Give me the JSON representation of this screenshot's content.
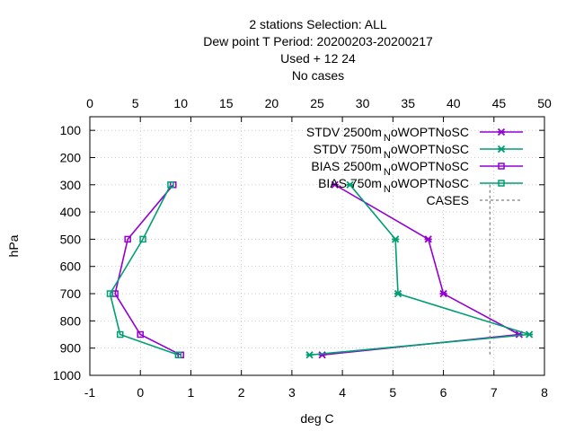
{
  "chart_data": {
    "type": "line",
    "title_lines": [
      "2 stations Selection: ALL",
      "Dew point T  Period: 20200203-20200217",
      "Used   + 12 24",
      "No cases"
    ],
    "xlabel": "deg C",
    "ylabel": "hPa",
    "xlim": [
      -1,
      8
    ],
    "ylim": [
      1000,
      50
    ],
    "x2lim": [
      0,
      50
    ],
    "x_ticks": [
      "-1",
      "0",
      "1",
      "2",
      "3",
      "4",
      "5",
      "6",
      "7",
      "8"
    ],
    "x2_ticks": [
      "0",
      "5",
      "10",
      "15",
      "20",
      "25",
      "30",
      "35",
      "40",
      "45",
      "50"
    ],
    "y_ticks": [
      "100",
      "200",
      "300",
      "400",
      "500",
      "600",
      "700",
      "800",
      "900",
      "1000"
    ],
    "legend_position": "top-right",
    "series": [
      {
        "name": "STDV 2500m",
        "name_sub": "N",
        "name_suffix": "oWOPTNoSC",
        "color": "#9400d3",
        "marker": "x",
        "points": [
          [
            3.85,
            300
          ],
          [
            5.7,
            500
          ],
          [
            6.0,
            700
          ],
          [
            7.5,
            850
          ],
          [
            3.6,
            925
          ]
        ]
      },
      {
        "name": "STDV 750m",
        "name_sub": "N",
        "name_suffix": "oWOPTNoSC",
        "color": "#009e73",
        "marker": "x",
        "points": [
          [
            4.15,
            300
          ],
          [
            5.05,
            500
          ],
          [
            5.1,
            700
          ],
          [
            7.7,
            850
          ],
          [
            3.35,
            925
          ]
        ]
      },
      {
        "name": "BIAS 2500m",
        "name_sub": "N",
        "name_suffix": "oWOPTNoSC",
        "color": "#9400d3",
        "marker": "square",
        "points": [
          [
            0.65,
            300
          ],
          [
            -0.25,
            500
          ],
          [
            -0.5,
            700
          ],
          [
            0.0,
            850
          ],
          [
            0.8,
            925
          ]
        ]
      },
      {
        "name": "BIAS 750m",
        "name_sub": "N",
        "name_suffix": "oWOPTNoSC",
        "color": "#009e73",
        "marker": "square",
        "points": [
          [
            0.6,
            300
          ],
          [
            0.05,
            500
          ],
          [
            -0.6,
            700
          ],
          [
            -0.4,
            850
          ],
          [
            0.75,
            925
          ]
        ]
      },
      {
        "name": "CASES",
        "name_sub": "",
        "name_suffix": "",
        "color": "#808080",
        "marker": "dashed",
        "axis": "x2",
        "points": [
          [
            44,
            300
          ],
          [
            44,
            925
          ]
        ]
      }
    ]
  }
}
